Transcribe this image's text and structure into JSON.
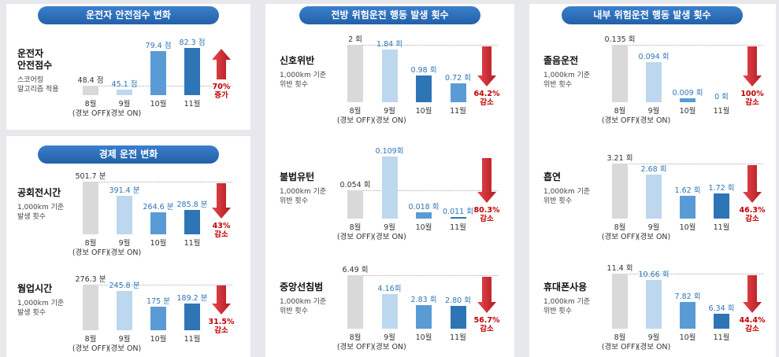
{
  "panels": [
    {
      "title": "운전자 안전점수 변화",
      "charts": [
        {
          "type": "bar",
          "title": "운전자\n안전점수",
          "subtitle": "스코어링\n알고리즘 적용",
          "categories": [
            "8월\n(경보 OFF)",
            "9월\n(경보 ON)",
            "10월",
            "11월"
          ],
          "values": [
            48.4,
            45.1,
            79.4,
            82.3
          ],
          "value_labels": [
            "48.4 점",
            "45.1 점",
            "79.4 점",
            "82.3 점"
          ],
          "colors": [
            "#d9d9d9",
            "#bdd7ee",
            "#5b9bd5",
            "#2e75b6"
          ],
          "ylim": [
            40,
            83
          ],
          "change": {
            "value": 70,
            "label": "70%",
            "text": "증가",
            "direction": "up"
          }
        }
      ]
    },
    {
      "title": "경제 운전 변화",
      "charts": [
        {
          "type": "bar",
          "title": "공회전시간",
          "subtitle": "1,000km 기준\n발생 횟수",
          "categories": [
            "8월\n(경보 OFF)",
            "9월\n(경보 ON)",
            "10월",
            "11월"
          ],
          "values": [
            501.7,
            391.4,
            264.6,
            285.8
          ],
          "value_labels": [
            "501.7 분",
            "391.4 분",
            "264.6 분",
            "285.8 분"
          ],
          "colors": [
            "#d9d9d9",
            "#bdd7ee",
            "#5b9bd5",
            "#2e75b6"
          ],
          "ylim": [
            95,
            502
          ],
          "change": {
            "value": 43,
            "label": "43%",
            "text": "감소",
            "direction": "down"
          }
        },
        {
          "type": "bar",
          "title": "웜업시간",
          "subtitle": "1,000km 기준\n발생 횟수",
          "categories": [
            "8월\n(경보 OFF)",
            "9월\n(경보 ON)",
            "10월",
            "11월"
          ],
          "values": [
            276.3,
            245.8,
            175,
            189.2
          ],
          "value_labels": [
            "276.3 분",
            "245.8 분",
            "175 분",
            "189.2 분"
          ],
          "colors": [
            "#d9d9d9",
            "#bdd7ee",
            "#5b9bd5",
            "#2e75b6"
          ],
          "ylim": [
            66,
            280
          ],
          "change": {
            "value": 31.5,
            "label": "31.5%",
            "text": "감소",
            "direction": "down"
          }
        }
      ]
    },
    {
      "title": "전방 위험운전 행동 발생 횟수",
      "charts": [
        {
          "type": "bar",
          "title": "신호위반",
          "subtitle": "1,000km 기준\n위반 횟수",
          "categories": [
            "8월\n(경보 OFF)",
            "9월\n(경보 ON)",
            "10월",
            "11월"
          ],
          "values": [
            2,
            1.84,
            0.98,
            0.72
          ],
          "value_labels": [
            "2 회",
            "1.84 회",
            "0.98 회",
            "0.72 회"
          ],
          "colors": [
            "#d9d9d9",
            "#bdd7ee",
            "#2e75b6",
            "#5b9bd5"
          ],
          "ylim": [
            0.1,
            2
          ],
          "change": {
            "value": 64.2,
            "label": "64.2%",
            "text": "감소",
            "direction": "down"
          }
        },
        {
          "type": "bar",
          "title": "불법유턴",
          "subtitle": "1,000km 기준\n위반 횟수",
          "categories": [
            "8월\n(경보 OFF)",
            "9월\n(경보 ON)",
            "10월",
            "11월"
          ],
          "values": [
            0.054,
            0.109,
            0.018,
            0.011
          ],
          "value_labels": [
            "0.054 회",
            "0.109회",
            "0.018 회",
            "0.011 회"
          ],
          "colors": [
            "#d9d9d9",
            "#bdd7ee",
            "#5b9bd5",
            "#2e75b6"
          ],
          "ylim": [
            0.008,
            0.109
          ],
          "change": {
            "value": 80.3,
            "label": "80.3%",
            "text": "감소",
            "direction": "down"
          }
        },
        {
          "type": "bar",
          "title": "중앙선침범",
          "subtitle": "1,000km 기준\n위반 횟수",
          "categories": [
            "8월\n(경보 OFF)",
            "9월\n(경보 ON)",
            "10월",
            "11월"
          ],
          "values": [
            6.49,
            4.16,
            2.83,
            2.8
          ],
          "value_labels": [
            "6.49 회",
            "4.16회",
            "2.83 회",
            "2.80 회"
          ],
          "colors": [
            "#d9d9d9",
            "#bdd7ee",
            "#5b9bd5",
            "#2e75b6"
          ],
          "ylim": [
            0,
            6.5
          ],
          "change": {
            "value": 56.7,
            "label": "56.7%",
            "text": "감소",
            "direction": "down"
          }
        }
      ]
    },
    {
      "title": "내부 위험운전 행동 발생 횟수",
      "charts": [
        {
          "type": "bar",
          "title": "졸음운전",
          "subtitle": "1,000km 기준\n위반 횟수",
          "categories": [
            "8월\n(경보 OFF)",
            "9월\n(경보 ON)",
            "10월",
            "11월"
          ],
          "values": [
            0.135,
            0.094,
            0.009,
            0
          ],
          "value_labels": [
            "0.135 회",
            "0.094 회",
            "0.009 회",
            "0 회"
          ],
          "colors": [
            "#d9d9d9",
            "#bdd7ee",
            "#5b9bd5",
            "#2e75b6"
          ],
          "ylim": [
            0,
            0.135
          ],
          "change": {
            "value": 100,
            "label": "100%",
            "text": "감소",
            "direction": "down"
          }
        },
        {
          "type": "bar",
          "title": "흡연",
          "subtitle": "1,000km 기준\n위반 횟수",
          "categories": [
            "8월\n(경보 OFF)",
            "9월\n(경보 ON)",
            "10월",
            "11월"
          ],
          "values": [
            3.21,
            2.68,
            1.62,
            1.72
          ],
          "value_labels": [
            "3.21 회",
            "2.68 회",
            "1.62 회",
            "1.72 회"
          ],
          "colors": [
            "#d9d9d9",
            "#bdd7ee",
            "#5b9bd5",
            "#2e75b6"
          ],
          "ylim": [
            0.5,
            3.21
          ],
          "change": {
            "value": 46.3,
            "label": "46.3%",
            "text": "감소",
            "direction": "down"
          }
        },
        {
          "type": "bar",
          "title": "휴대폰사용",
          "subtitle": "1,000km 기준\n위반 횟수",
          "categories": [
            "8월\n(경보 OFF)",
            "9월\n(경보 ON)",
            "10월",
            "11월"
          ],
          "values": [
            11.4,
            10.66,
            7.82,
            6.34
          ],
          "value_labels": [
            "11.4 회",
            "10.66 회",
            "7.82 회",
            "6.34 회"
          ],
          "colors": [
            "#d9d9d9",
            "#bdd7ee",
            "#5b9bd5",
            "#2e75b6"
          ],
          "ylim": [
            4.5,
            11.4
          ],
          "change": {
            "value": 44.4,
            "label": "44.4%",
            "text": "감소",
            "direction": "down"
          }
        }
      ]
    }
  ]
}
